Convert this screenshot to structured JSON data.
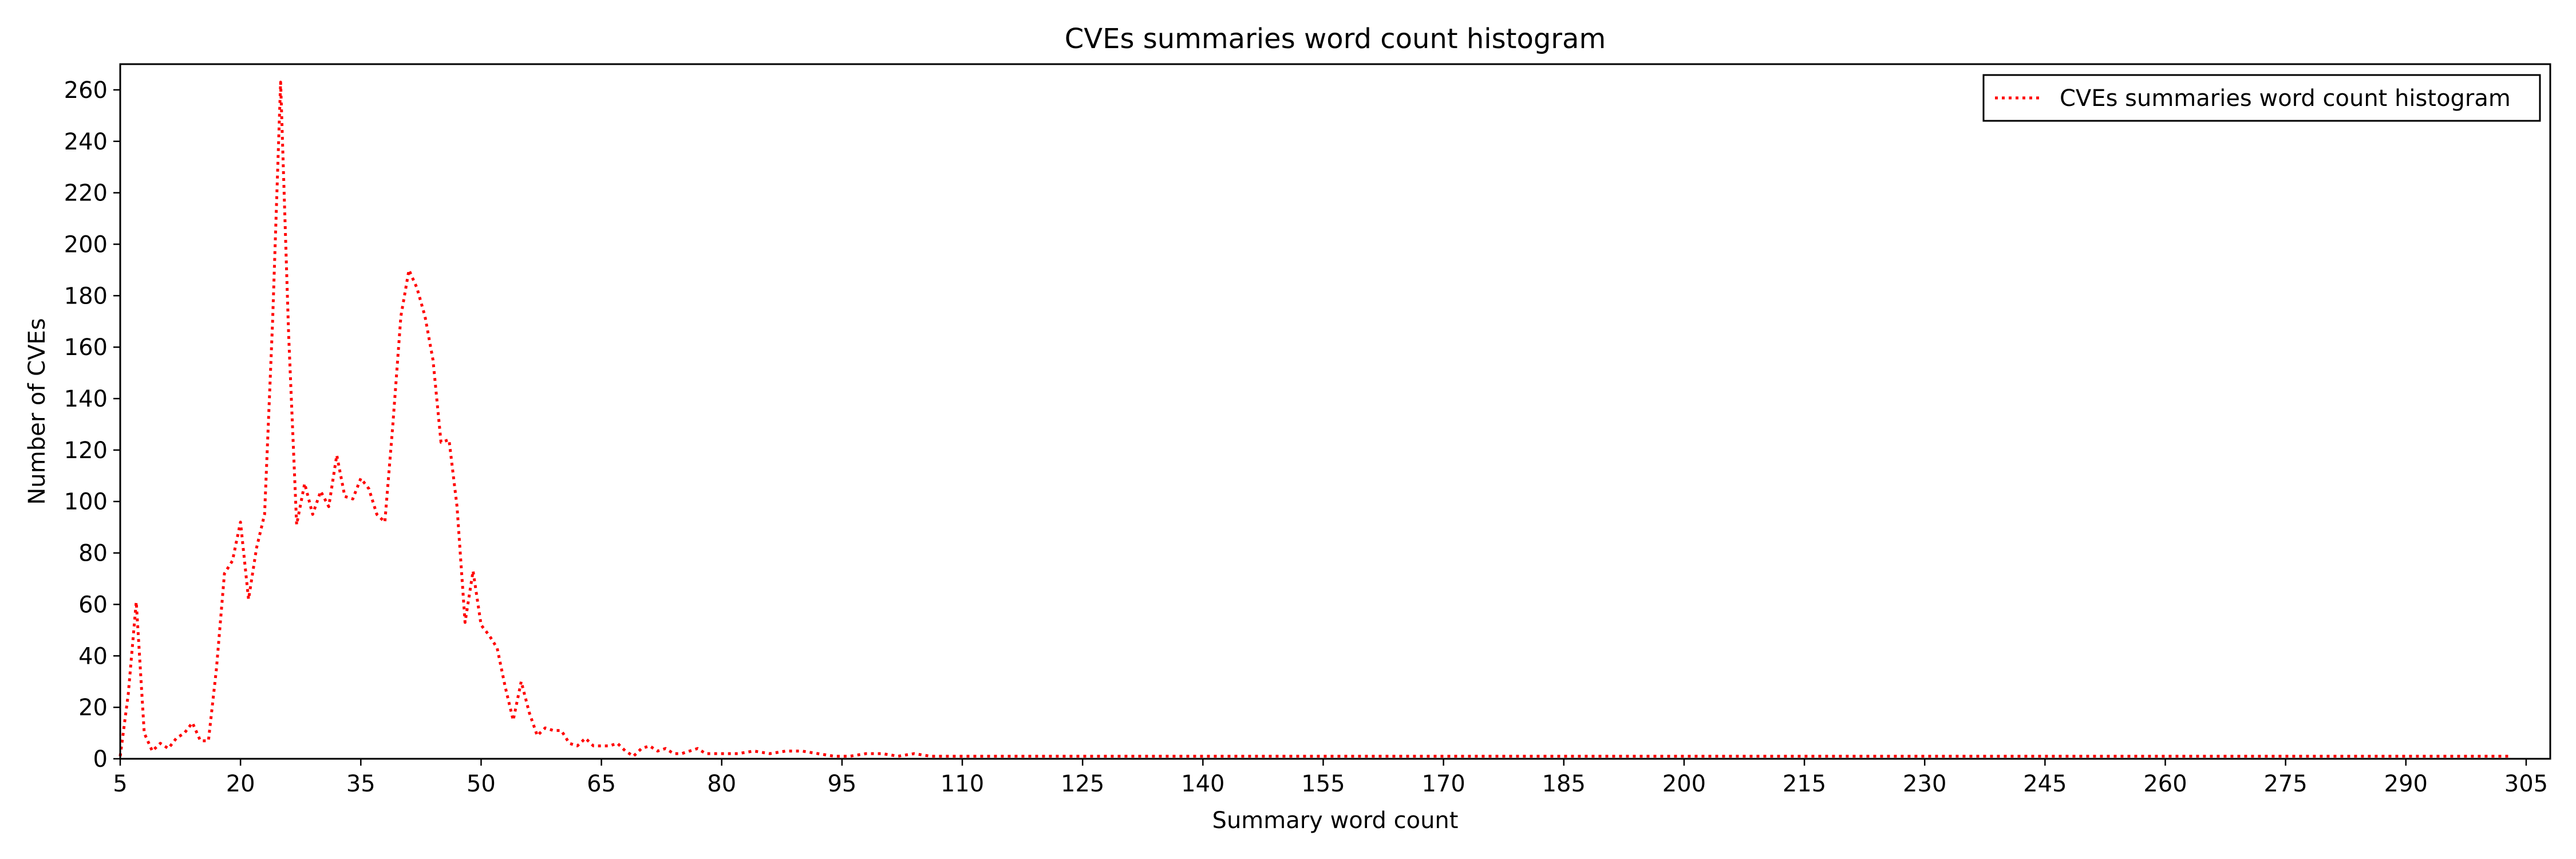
{
  "chart_data": {
    "type": "line",
    "title": "CVEs summaries word count histogram",
    "xlabel": "Summary word count",
    "ylabel": "Number of CVEs",
    "xlim": [
      5,
      308
    ],
    "ylim": [
      0,
      270
    ],
    "xticks": [
      5,
      20,
      35,
      50,
      65,
      80,
      95,
      110,
      125,
      140,
      155,
      170,
      185,
      200,
      215,
      230,
      245,
      260,
      275,
      290,
      305
    ],
    "yticks": [
      0,
      20,
      40,
      60,
      80,
      100,
      120,
      140,
      160,
      180,
      200,
      220,
      240,
      260
    ],
    "grid": false,
    "legend_position": "top-right",
    "line_style": "dotted",
    "series": [
      {
        "name": "CVEs summaries word count histogram",
        "color": "#ff0000",
        "points": [
          [
            5,
            1
          ],
          [
            6,
            25
          ],
          [
            7,
            61
          ],
          [
            8,
            10
          ],
          [
            9,
            3
          ],
          [
            10,
            6
          ],
          [
            11,
            4
          ],
          [
            12,
            8
          ],
          [
            13,
            10
          ],
          [
            14,
            14
          ],
          [
            15,
            7
          ],
          [
            16,
            7
          ],
          [
            17,
            35
          ],
          [
            18,
            72
          ],
          [
            19,
            77
          ],
          [
            20,
            92
          ],
          [
            21,
            62
          ],
          [
            22,
            82
          ],
          [
            23,
            95
          ],
          [
            24,
            170
          ],
          [
            25,
            263
          ],
          [
            26,
            165
          ],
          [
            27,
            91
          ],
          [
            28,
            107
          ],
          [
            29,
            95
          ],
          [
            30,
            104
          ],
          [
            31,
            98
          ],
          [
            32,
            118
          ],
          [
            33,
            102
          ],
          [
            34,
            101
          ],
          [
            35,
            109
          ],
          [
            36,
            105
          ],
          [
            37,
            95
          ],
          [
            38,
            92
          ],
          [
            39,
            130
          ],
          [
            40,
            172
          ],
          [
            41,
            190
          ],
          [
            42,
            183
          ],
          [
            43,
            172
          ],
          [
            44,
            155
          ],
          [
            45,
            123
          ],
          [
            46,
            124
          ],
          [
            47,
            98
          ],
          [
            48,
            53
          ],
          [
            49,
            73
          ],
          [
            50,
            52
          ],
          [
            51,
            48
          ],
          [
            52,
            43
          ],
          [
            53,
            28
          ],
          [
            54,
            15
          ],
          [
            55,
            30
          ],
          [
            56,
            18
          ],
          [
            57,
            9
          ],
          [
            58,
            12
          ],
          [
            59,
            11
          ],
          [
            60,
            11
          ],
          [
            61,
            6
          ],
          [
            62,
            5
          ],
          [
            63,
            8
          ],
          [
            64,
            5
          ],
          [
            65,
            5
          ],
          [
            66,
            5
          ],
          [
            67,
            6
          ],
          [
            68,
            3
          ],
          [
            69,
            1
          ],
          [
            70,
            4
          ],
          [
            71,
            5
          ],
          [
            72,
            3
          ],
          [
            73,
            4
          ],
          [
            74,
            2
          ],
          [
            75,
            2
          ],
          [
            76,
            3
          ],
          [
            77,
            4
          ],
          [
            78,
            2
          ],
          [
            79,
            2
          ],
          [
            80,
            2
          ],
          [
            82,
            2
          ],
          [
            84,
            3
          ],
          [
            86,
            2
          ],
          [
            88,
            3
          ],
          [
            90,
            3
          ],
          [
            92,
            2
          ],
          [
            94,
            1
          ],
          [
            96,
            1
          ],
          [
            98,
            2
          ],
          [
            100,
            2
          ],
          [
            102,
            1
          ],
          [
            104,
            2
          ],
          [
            106,
            1
          ],
          [
            108,
            1
          ],
          [
            110,
            1
          ],
          [
            115,
            1
          ],
          [
            120,
            1
          ],
          [
            130,
            1
          ],
          [
            140,
            1
          ],
          [
            150,
            1
          ],
          [
            160,
            1
          ],
          [
            170,
            1
          ],
          [
            180,
            1
          ],
          [
            190,
            1
          ],
          [
            200,
            1
          ],
          [
            210,
            1
          ],
          [
            220,
            1
          ],
          [
            230,
            1
          ],
          [
            240,
            1
          ],
          [
            250,
            1
          ],
          [
            260,
            1
          ],
          [
            270,
            1
          ],
          [
            280,
            1
          ],
          [
            290,
            1
          ],
          [
            300,
            1
          ],
          [
            303,
            1
          ]
        ]
      }
    ]
  }
}
